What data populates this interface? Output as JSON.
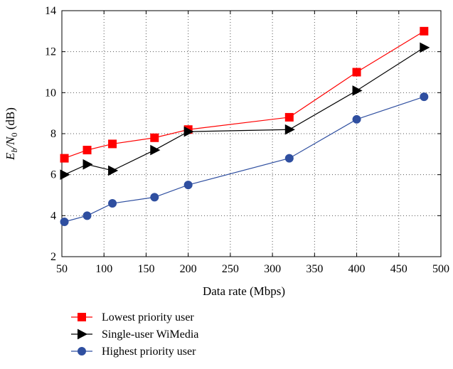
{
  "chart_data": {
    "type": "line",
    "xlabel": "Data rate (Mbps)",
    "ylabel_main": "E",
    "ylabel_sub1": "b",
    "ylabel_mid": "/N",
    "ylabel_sub2": "0",
    "ylabel_unit": " (dB)",
    "xlim": [
      50,
      500
    ],
    "ylim": [
      2,
      14
    ],
    "xticks": [
      50,
      100,
      150,
      200,
      250,
      300,
      350,
      400,
      450,
      500
    ],
    "yticks": [
      2,
      4,
      6,
      8,
      10,
      12,
      14
    ],
    "grid": true,
    "legend_position": "below",
    "series": [
      {
        "name": "Lowest priority user",
        "color": "#ff0000",
        "marker": "square",
        "x": [
          53,
          80,
          110,
          160,
          200,
          320,
          400,
          480
        ],
        "y": [
          6.8,
          7.2,
          7.5,
          7.8,
          8.2,
          8.8,
          11.0,
          13.0
        ]
      },
      {
        "name": "Single-user WiMedia",
        "color": "#000000",
        "marker": "triangle-right",
        "x": [
          53,
          80,
          110,
          160,
          200,
          320,
          400,
          480
        ],
        "y": [
          6.0,
          6.5,
          6.2,
          7.2,
          8.1,
          8.2,
          10.1,
          12.2
        ]
      },
      {
        "name": "Highest priority user",
        "color": "#2f4fa0",
        "marker": "circle",
        "x": [
          53,
          80,
          110,
          160,
          200,
          320,
          400,
          480
        ],
        "y": [
          3.7,
          4.0,
          4.6,
          4.9,
          5.5,
          6.8,
          8.7,
          9.8
        ]
      }
    ]
  }
}
